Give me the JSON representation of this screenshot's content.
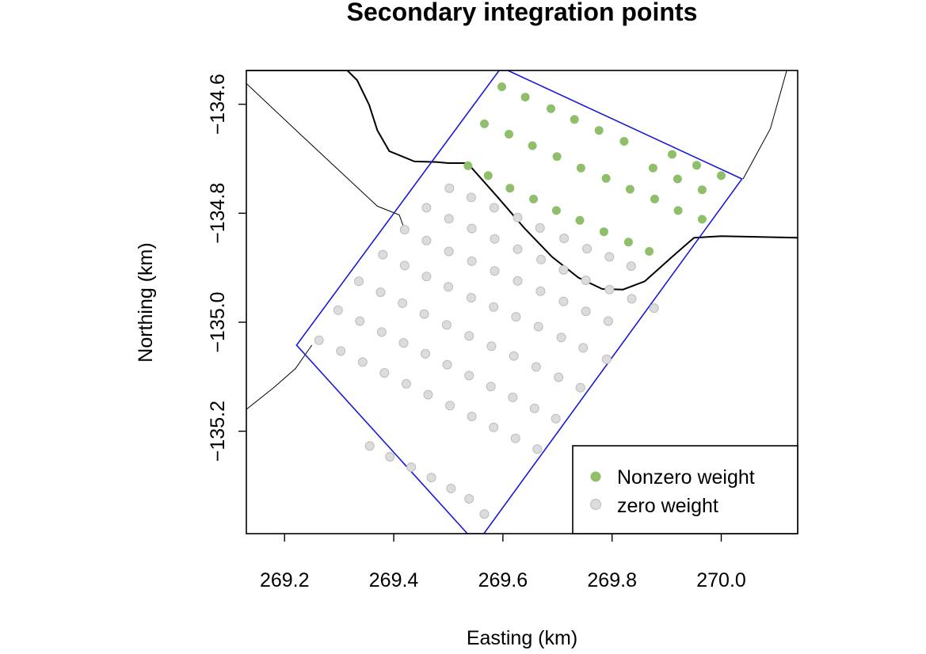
{
  "chart_data": {
    "type": "scatter",
    "title": "Secondary integration points",
    "xlabel": "Easting (km)",
    "ylabel": "Northing (km)",
    "xlim": [
      269.13,
      270.14
    ],
    "ylim": [
      -135.388,
      -134.538
    ],
    "x_ticks": [
      269.2,
      269.4,
      269.6,
      269.8,
      270.0
    ],
    "x_tick_labels": [
      "269.2",
      "269.4",
      "269.6",
      "269.8",
      "270.0"
    ],
    "y_ticks": [
      -134.6,
      -134.8,
      -135.0,
      -135.2
    ],
    "y_tick_labels": [
      "−134.6",
      "−134.8",
      "−135.0",
      "−135.2"
    ],
    "legend": {
      "position": "bottom-right",
      "entries": [
        {
          "label": "Nonzero weight",
          "color": "#8fbf6a"
        },
        {
          "label": "zero weight",
          "color": "#dcdcdc"
        }
      ]
    },
    "colors": {
      "nonzero": "#8fbf6a",
      "zero": "#dcdcdc",
      "zero_edge": "#bdbdbd",
      "region": "#1a1ad9",
      "boundary": "#000000"
    },
    "series": [
      {
        "name": "Nonzero weight",
        "points": [
          [
            269.598,
            -134.568
          ],
          [
            269.641,
            -134.587
          ],
          [
            269.688,
            -134.608
          ],
          [
            269.731,
            -134.628
          ],
          [
            269.776,
            -134.648
          ],
          [
            269.822,
            -134.668
          ],
          [
            269.566,
            -134.636
          ],
          [
            269.611,
            -134.655
          ],
          [
            269.654,
            -134.676
          ],
          [
            269.699,
            -134.696
          ],
          [
            269.743,
            -134.717
          ],
          [
            269.789,
            -134.736
          ],
          [
            269.833,
            -134.756
          ],
          [
            269.878,
            -134.774
          ],
          [
            269.921,
            -134.795
          ],
          [
            269.965,
            -134.811
          ],
          [
            269.536,
            -134.713
          ],
          [
            269.573,
            -134.731
          ],
          [
            269.613,
            -134.754
          ],
          [
            269.656,
            -134.774
          ],
          [
            269.698,
            -134.795
          ],
          [
            269.741,
            -134.813
          ],
          [
            269.785,
            -134.834
          ],
          [
            269.83,
            -134.853
          ],
          [
            269.868,
            -134.87
          ],
          [
            269.91,
            -134.692
          ],
          [
            269.955,
            -134.712
          ],
          [
            270.0,
            -134.731
          ],
          [
            269.875,
            -134.717
          ],
          [
            269.92,
            -134.737
          ],
          [
            269.965,
            -134.757
          ]
        ]
      },
      {
        "name": "zero weight",
        "points": [
          [
            269.502,
            -134.754
          ],
          [
            269.542,
            -134.771
          ],
          [
            269.584,
            -134.79
          ],
          [
            269.627,
            -134.808
          ],
          [
            269.668,
            -134.827
          ],
          [
            269.712,
            -134.846
          ],
          [
            269.754,
            -134.865
          ],
          [
            269.795,
            -134.88
          ],
          [
            269.835,
            -134.897
          ],
          [
            269.46,
            -134.79
          ],
          [
            269.501,
            -134.81
          ],
          [
            269.543,
            -134.828
          ],
          [
            269.585,
            -134.847
          ],
          [
            269.627,
            -134.866
          ],
          [
            269.67,
            -134.885
          ],
          [
            269.711,
            -134.904
          ],
          [
            269.752,
            -134.923
          ],
          [
            269.795,
            -134.94
          ],
          [
            269.836,
            -134.957
          ],
          [
            269.877,
            -134.974
          ],
          [
            269.42,
            -134.83
          ],
          [
            269.46,
            -134.85
          ],
          [
            269.501,
            -134.87
          ],
          [
            269.543,
            -134.888
          ],
          [
            269.585,
            -134.906
          ],
          [
            269.627,
            -134.924
          ],
          [
            269.669,
            -134.943
          ],
          [
            269.711,
            -134.962
          ],
          [
            269.752,
            -134.98
          ],
          [
            269.793,
            -134.998
          ],
          [
            269.38,
            -134.876
          ],
          [
            269.42,
            -134.896
          ],
          [
            269.46,
            -134.916
          ],
          [
            269.5,
            -134.935
          ],
          [
            269.542,
            -134.955
          ],
          [
            269.583,
            -134.972
          ],
          [
            269.624,
            -134.99
          ],
          [
            269.665,
            -135.008
          ],
          [
            269.707,
            -135.028
          ],
          [
            269.747,
            -135.047
          ],
          [
            269.79,
            -135.068
          ],
          [
            269.336,
            -134.925
          ],
          [
            269.376,
            -134.945
          ],
          [
            269.416,
            -134.965
          ],
          [
            269.456,
            -134.985
          ],
          [
            269.497,
            -135.005
          ],
          [
            269.538,
            -135.025
          ],
          [
            269.579,
            -135.044
          ],
          [
            269.62,
            -135.062
          ],
          [
            269.661,
            -135.082
          ],
          [
            269.702,
            -135.101
          ],
          [
            269.742,
            -135.12
          ],
          [
            269.298,
            -134.978
          ],
          [
            269.338,
            -134.998
          ],
          [
            269.378,
            -135.018
          ],
          [
            269.418,
            -135.038
          ],
          [
            269.458,
            -135.058
          ],
          [
            269.498,
            -135.078
          ],
          [
            269.538,
            -135.098
          ],
          [
            269.578,
            -135.118
          ],
          [
            269.618,
            -135.138
          ],
          [
            269.658,
            -135.158
          ],
          [
            269.697,
            -135.177
          ],
          [
            269.263,
            -135.033
          ],
          [
            269.303,
            -135.053
          ],
          [
            269.343,
            -135.073
          ],
          [
            269.383,
            -135.093
          ],
          [
            269.423,
            -135.113
          ],
          [
            269.463,
            -135.133
          ],
          [
            269.503,
            -135.153
          ],
          [
            269.543,
            -135.173
          ],
          [
            269.583,
            -135.193
          ],
          [
            269.623,
            -135.213
          ],
          [
            269.663,
            -135.233
          ],
          [
            269.538,
            -135.324
          ],
          [
            269.505,
            -135.305
          ],
          [
            269.469,
            -135.285
          ],
          [
            269.432,
            -135.266
          ],
          [
            269.393,
            -135.247
          ],
          [
            269.356,
            -135.227
          ],
          [
            269.566,
            -135.352
          ]
        ]
      }
    ],
    "region_polygon": [
      [
        269.593,
        -134.538
      ],
      [
        269.609,
        -134.538
      ],
      [
        270.038,
        -134.737
      ],
      [
        269.565,
        -135.388
      ],
      [
        269.535,
        -135.388
      ],
      [
        269.222,
        -135.042
      ]
    ],
    "boundary_lines": [
      [
        [
          269.13,
          -134.538
        ],
        [
          269.17,
          -134.538
        ],
        [
          269.22,
          -134.538
        ],
        [
          269.3,
          -134.538
        ],
        [
          269.315,
          -134.538
        ],
        [
          269.333,
          -134.556
        ],
        [
          269.355,
          -134.601
        ],
        [
          269.37,
          -134.648
        ],
        [
          269.392,
          -134.686
        ],
        [
          269.438,
          -134.705
        ],
        [
          269.478,
          -134.706
        ],
        [
          269.5,
          -134.708
        ],
        [
          269.535,
          -134.708
        ],
        [
          269.59,
          -134.77
        ],
        [
          269.64,
          -134.828
        ],
        [
          269.69,
          -134.88
        ],
        [
          269.738,
          -134.918
        ],
        [
          269.782,
          -134.939
        ],
        [
          269.82,
          -134.94
        ],
        [
          269.86,
          -134.925
        ],
        [
          269.91,
          -134.88
        ],
        [
          269.95,
          -134.845
        ],
        [
          270.0,
          -134.842
        ],
        [
          270.14,
          -134.845
        ]
      ],
      [
        [
          269.13,
          -134.562
        ],
        [
          269.25,
          -134.675
        ],
        [
          269.37,
          -134.787
        ],
        [
          269.41,
          -134.803
        ],
        [
          269.42,
          -134.83
        ]
      ],
      [
        [
          269.13,
          -135.16
        ],
        [
          269.18,
          -135.12
        ],
        [
          269.22,
          -135.085
        ],
        [
          269.25,
          -135.042
        ]
      ],
      [
        [
          270.14,
          -134.538
        ],
        [
          270.12,
          -134.538
        ],
        [
          270.09,
          -134.645
        ],
        [
          270.04,
          -134.737
        ]
      ]
    ]
  }
}
